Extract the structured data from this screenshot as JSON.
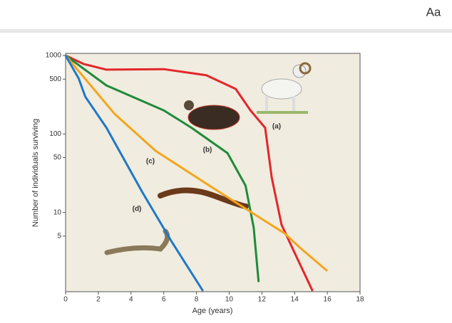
{
  "header": {
    "font_button": "Aa"
  },
  "chart_data": {
    "type": "line",
    "x_label": "Age (years)",
    "y_label": "Number of individuals surviving",
    "xlim": [
      0,
      18
    ],
    "xticks": [
      0,
      2,
      4,
      6,
      8,
      10,
      12,
      14,
      16,
      18
    ],
    "ylim": [
      1,
      1000
    ],
    "yticks": [
      1000,
      500,
      100,
      50,
      10,
      5
    ],
    "yscale": "log",
    "series": [
      {
        "name": "(a)",
        "color": "#e3262b",
        "x": [
          0,
          1.1,
          2.5,
          6,
          8.6,
          10.4,
          11.3,
          12.2,
          12.6,
          13.2,
          13.9,
          15.1
        ],
        "values": [
          1000,
          780,
          660,
          670,
          560,
          375,
          200,
          120,
          28,
          7,
          3.4,
          1
        ]
      },
      {
        "name": "(b)",
        "color": "#1f8a3b",
        "x": [
          0,
          2.5,
          6,
          7.7,
          9.9,
          11,
          11.5,
          11.8
        ],
        "values": [
          1000,
          415,
          200,
          120,
          57,
          22,
          6.4,
          1.3
        ]
      },
      {
        "name": "(c)",
        "color": "#f4a51c",
        "x": [
          0,
          3,
          5.5,
          9.1,
          13.4,
          14.3,
          16
        ],
        "values": [
          1000,
          180,
          61,
          20,
          5.4,
          3.6,
          1.8
        ]
      },
      {
        "name": "(d)",
        "color": "#1f78c8",
        "x": [
          0,
          0.8,
          1.2,
          2.5,
          4.7,
          6.5,
          8.4
        ],
        "values": [
          1000,
          510,
          300,
          120,
          18,
          4.2,
          1
        ]
      }
    ]
  }
}
